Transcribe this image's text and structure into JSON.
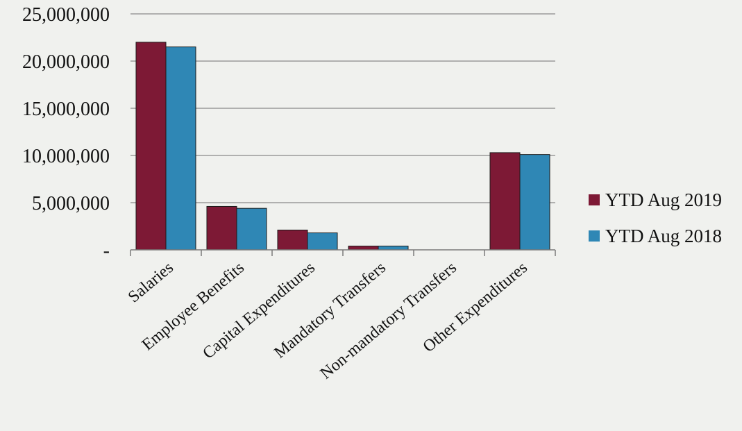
{
  "chart_data": {
    "type": "bar",
    "title": "",
    "xlabel": "",
    "ylabel": "",
    "categories": [
      "Salaries",
      "Employee Benefits",
      "Capital Expenditures",
      "Mandatory Transfers",
      "Non-mandatory Transfers",
      "Other Expenditures"
    ],
    "series": [
      {
        "name": "YTD Aug 2019",
        "color": "#7d1935",
        "values": [
          22000000,
          4600000,
          2100000,
          400000,
          0,
          10300000
        ]
      },
      {
        "name": "YTD Aug 2018",
        "color": "#2f87b5",
        "values": [
          21500000,
          4400000,
          1800000,
          400000,
          0,
          10100000
        ]
      }
    ],
    "ylim": [
      0,
      25000000
    ],
    "yticks": [
      0,
      5000000,
      10000000,
      15000000,
      20000000,
      25000000
    ],
    "ytick_labels": [
      "-",
      "5,000,000",
      "10,000,000",
      "15,000,000",
      "20,000,000",
      "25,000,000"
    ],
    "grid": true,
    "legend_position": "right"
  }
}
